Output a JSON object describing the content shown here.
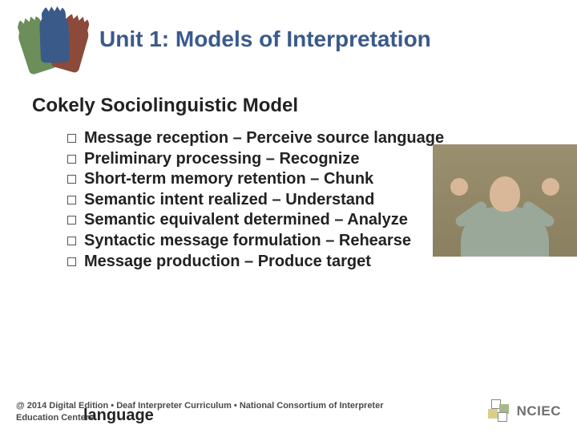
{
  "header": {
    "title": "Unit 1: Models of Interpretation"
  },
  "subtitle": "Cokely Sociolinguistic Model",
  "bullets": [
    "Message reception – Perceive source language",
    "Preliminary processing – Recognize",
    "Short-term memory retention – Chunk",
    "Semantic intent realized – Understand",
    "Semantic equivalent determined – Analyze",
    "Syntactic message formulation – Rehearse",
    "Message production – Produce target"
  ],
  "overflow_word": "language",
  "footer": {
    "text_line1": "@ 2014 Digital Edition • Deaf Interpreter Curriculum • National Consortium of Interpreter",
    "text_line2": "Education Centers",
    "org": "NCIEC"
  },
  "colors": {
    "title_color": "#3a5a8a",
    "text_color": "#222222"
  }
}
